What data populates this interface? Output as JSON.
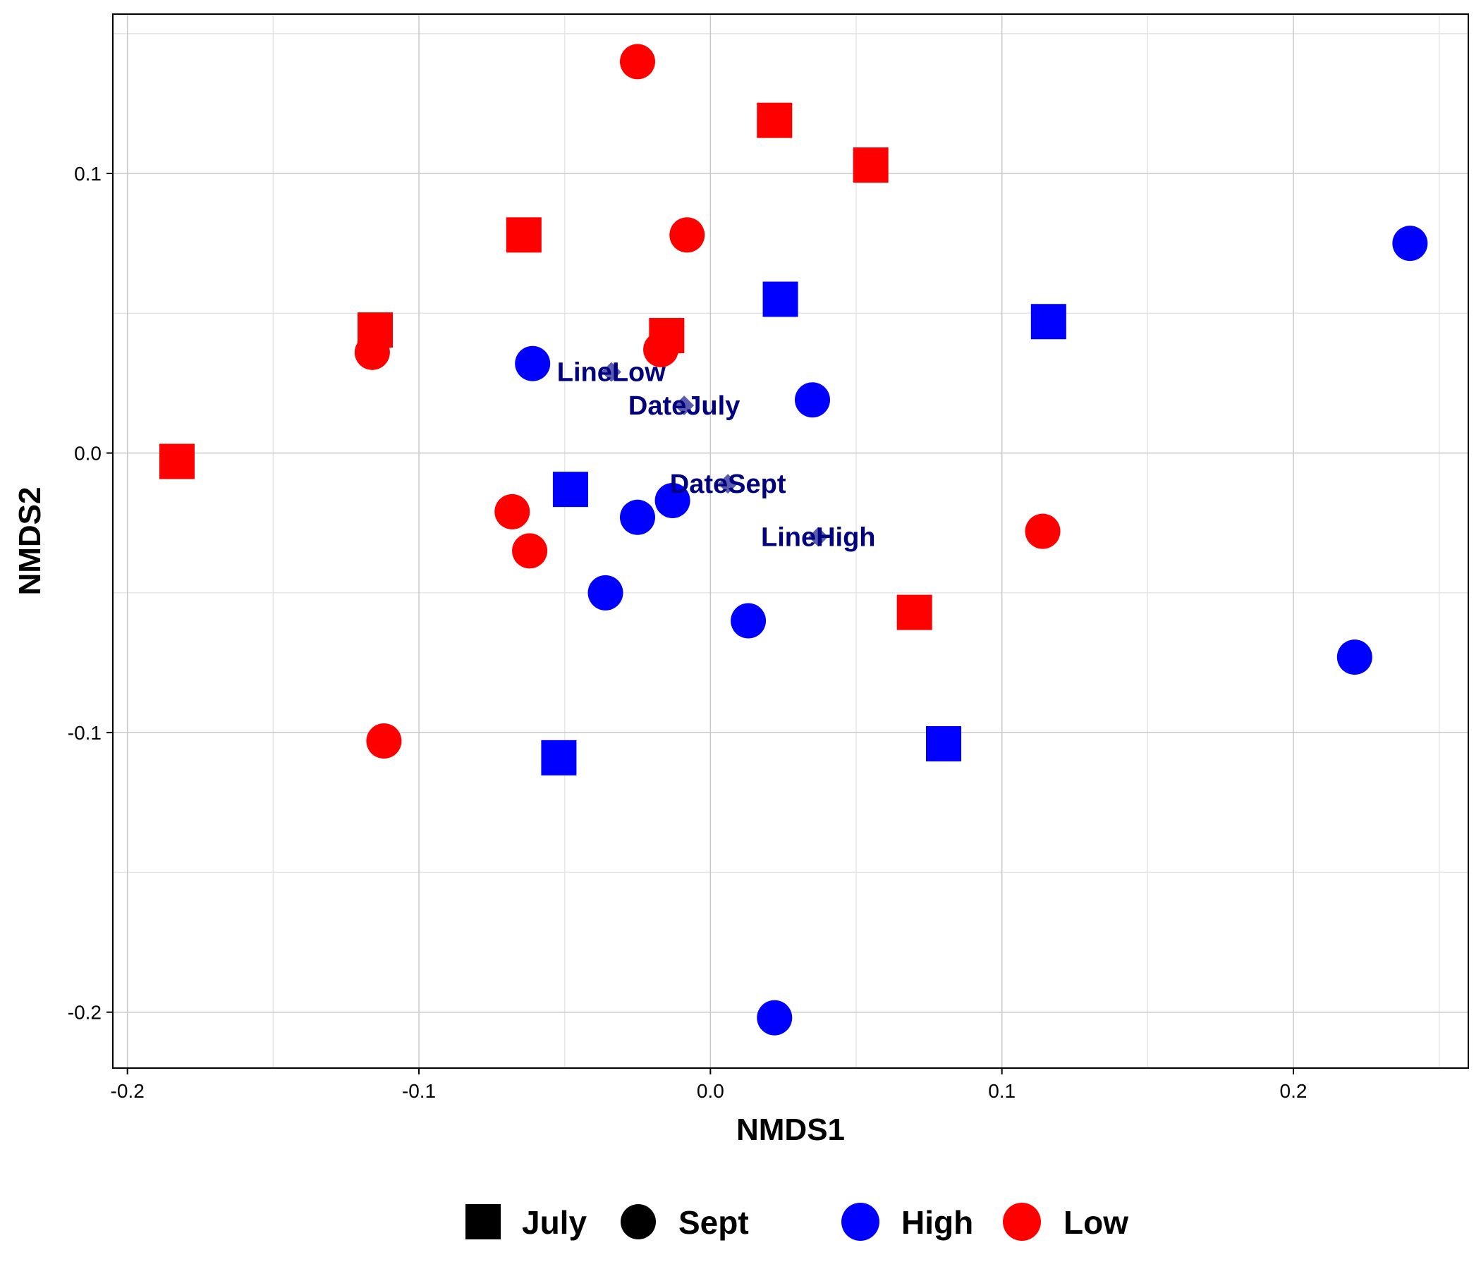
{
  "chart_data": {
    "type": "scatter",
    "xlabel": "NMDS1",
    "ylabel": "NMDS2",
    "xlim": [
      -0.205,
      0.26
    ],
    "ylim": [
      -0.22,
      0.157
    ],
    "x_ticks": [
      -0.2,
      -0.1,
      0.0,
      0.1,
      0.2
    ],
    "x_tick_labels": [
      "-0.2",
      "-0.1",
      "0.0",
      "0.1",
      "0.2"
    ],
    "y_ticks": [
      -0.2,
      -0.1,
      0.0,
      0.1
    ],
    "y_tick_labels": [
      "-0.2",
      "-0.1",
      "0.0",
      "0.1"
    ],
    "grid": true,
    "legend_position": "bottom",
    "colors": {
      "High": "#0000ff",
      "Low": "#ff0000",
      "centroid": "#000080"
    },
    "shapes": {
      "July": "square",
      "Sept": "circle"
    },
    "legend": {
      "shape_entries": [
        {
          "label": "July",
          "shape": "square"
        },
        {
          "label": "Sept",
          "shape": "circle"
        }
      ],
      "color_entries": [
        {
          "label": "High",
          "color": "#0000ff"
        },
        {
          "label": "Low",
          "color": "#ff0000"
        }
      ]
    },
    "points": [
      {
        "x": -0.025,
        "y": 0.14,
        "line": "Low",
        "date": "Sept"
      },
      {
        "x": 0.022,
        "y": 0.119,
        "line": "Low",
        "date": "July"
      },
      {
        "x": 0.055,
        "y": 0.103,
        "line": "Low",
        "date": "July"
      },
      {
        "x": -0.064,
        "y": 0.078,
        "line": "Low",
        "date": "July"
      },
      {
        "x": -0.008,
        "y": 0.078,
        "line": "Low",
        "date": "Sept"
      },
      {
        "x": -0.115,
        "y": 0.044,
        "line": "Low",
        "date": "July"
      },
      {
        "x": -0.116,
        "y": 0.036,
        "line": "Low",
        "date": "Sept"
      },
      {
        "x": -0.015,
        "y": 0.042,
        "line": "Low",
        "date": "July"
      },
      {
        "x": -0.017,
        "y": 0.037,
        "line": "Low",
        "date": "Sept"
      },
      {
        "x": -0.183,
        "y": -0.003,
        "line": "Low",
        "date": "July"
      },
      {
        "x": -0.068,
        "y": -0.021,
        "line": "Low",
        "date": "Sept"
      },
      {
        "x": -0.062,
        "y": -0.035,
        "line": "Low",
        "date": "Sept"
      },
      {
        "x": 0.114,
        "y": -0.028,
        "line": "Low",
        "date": "Sept"
      },
      {
        "x": 0.07,
        "y": -0.057,
        "line": "Low",
        "date": "July"
      },
      {
        "x": -0.112,
        "y": -0.103,
        "line": "Low",
        "date": "Sept"
      },
      {
        "x": 0.24,
        "y": 0.075,
        "line": "High",
        "date": "Sept"
      },
      {
        "x": 0.024,
        "y": 0.055,
        "line": "High",
        "date": "July"
      },
      {
        "x": 0.116,
        "y": 0.047,
        "line": "High",
        "date": "July"
      },
      {
        "x": -0.061,
        "y": 0.032,
        "line": "High",
        "date": "Sept"
      },
      {
        "x": 0.035,
        "y": 0.019,
        "line": "High",
        "date": "Sept"
      },
      {
        "x": -0.048,
        "y": -0.013,
        "line": "High",
        "date": "July"
      },
      {
        "x": -0.025,
        "y": -0.023,
        "line": "High",
        "date": "Sept"
      },
      {
        "x": -0.013,
        "y": -0.017,
        "line": "High",
        "date": "Sept"
      },
      {
        "x": -0.036,
        "y": -0.05,
        "line": "High",
        "date": "Sept"
      },
      {
        "x": 0.013,
        "y": -0.06,
        "line": "High",
        "date": "Sept"
      },
      {
        "x": 0.221,
        "y": -0.073,
        "line": "High",
        "date": "Sept"
      },
      {
        "x": -0.052,
        "y": -0.109,
        "line": "High",
        "date": "July"
      },
      {
        "x": 0.08,
        "y": -0.104,
        "line": "High",
        "date": "July"
      },
      {
        "x": 0.022,
        "y": -0.202,
        "line": "High",
        "date": "Sept"
      }
    ],
    "centroids": [
      {
        "label": "LineLow",
        "x": -0.034,
        "y": 0.029
      },
      {
        "label": "DateJuly",
        "x": -0.009,
        "y": 0.017
      },
      {
        "label": "DateSept",
        "x": 0.006,
        "y": -0.011
      },
      {
        "label": "LineHigh",
        "x": 0.037,
        "y": -0.03
      }
    ]
  }
}
